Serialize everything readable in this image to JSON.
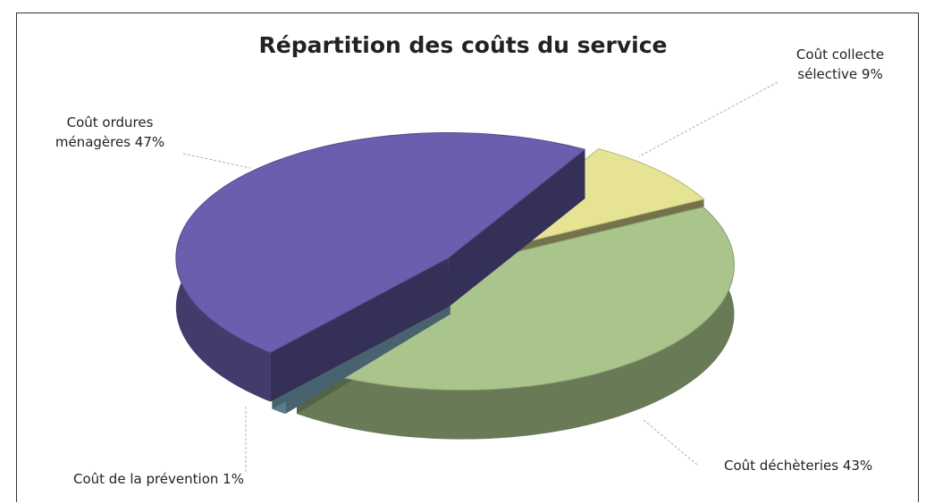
{
  "chart_data": {
    "type": "pie",
    "title": "Répartition des coûts du service",
    "categories": [
      "Coût collecte sélective",
      "Coût déchèteries",
      "Coût de la prévention",
      "Coût ordures ménagères"
    ],
    "values": [
      9,
      43,
      1,
      47
    ],
    "value_labels": [
      "9%",
      "43%",
      "1%",
      "47%"
    ],
    "colors": [
      "#e6e494",
      "#a9c58c",
      "#8fc6de",
      "#6a5fae"
    ]
  }
}
